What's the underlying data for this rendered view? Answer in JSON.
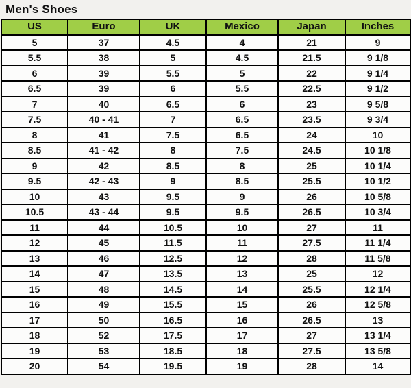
{
  "page": {
    "title": "Men's Shoes"
  },
  "colors": {
    "page_bg": "#f2f1ee",
    "header_bg": "#a0ce47",
    "cell_bg": "#fcfcfb",
    "border": "#000000",
    "text": "#111111"
  },
  "table": {
    "headers": [
      "US",
      "Euro",
      "UK",
      "Mexico",
      "Japan",
      "Inches"
    ],
    "rows": [
      [
        "5",
        "37",
        "4.5",
        "4",
        "21",
        "9"
      ],
      [
        "5.5",
        "38",
        "5",
        "4.5",
        "21.5",
        "9 1/8"
      ],
      [
        "6",
        "39",
        "5.5",
        "5",
        "22",
        "9 1/4"
      ],
      [
        "6.5",
        "39",
        "6",
        "5.5",
        "22.5",
        "9 1/2"
      ],
      [
        "7",
        "40",
        "6.5",
        "6",
        "23",
        "9 5/8"
      ],
      [
        "7.5",
        "40 - 41",
        "7",
        "6.5",
        "23.5",
        "9 3/4"
      ],
      [
        "8",
        "41",
        "7.5",
        "6.5",
        "24",
        "10"
      ],
      [
        "8.5",
        "41 - 42",
        "8",
        "7.5",
        "24.5",
        "10 1/8"
      ],
      [
        "9",
        "42",
        "8.5",
        "8",
        "25",
        "10 1/4"
      ],
      [
        "9.5",
        "42 - 43",
        "9",
        "8.5",
        "25.5",
        "10 1/2"
      ],
      [
        "10",
        "43",
        "9.5",
        "9",
        "26",
        "10 5/8"
      ],
      [
        "10.5",
        "43 - 44",
        "9.5",
        "9.5",
        "26.5",
        "10 3/4"
      ],
      [
        "11",
        "44",
        "10.5",
        "10",
        "27",
        "11"
      ],
      [
        "12",
        "45",
        "11.5",
        "11",
        "27.5",
        "11 1/4"
      ],
      [
        "13",
        "46",
        "12.5",
        "12",
        "28",
        "11 5/8"
      ],
      [
        "14",
        "47",
        "13.5",
        "13",
        "25",
        "12"
      ],
      [
        "15",
        "48",
        "14.5",
        "14",
        "25.5",
        "12 1/4"
      ],
      [
        "16",
        "49",
        "15.5",
        "15",
        "26",
        "12 5/8"
      ],
      [
        "17",
        "50",
        "16.5",
        "16",
        "26.5",
        "13"
      ],
      [
        "18",
        "52",
        "17.5",
        "17",
        "27",
        "13 1/4"
      ],
      [
        "19",
        "53",
        "18.5",
        "18",
        "27.5",
        "13 5/8"
      ],
      [
        "20",
        "54",
        "19.5",
        "19",
        "28",
        "14"
      ]
    ]
  }
}
